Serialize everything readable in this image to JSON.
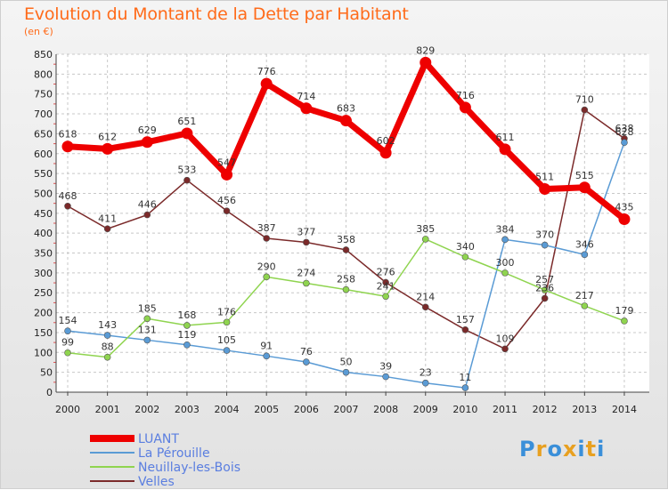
{
  "header": {
    "title": "Evolution du Montant de la Dette par Habitant",
    "subtitle": "(en €)"
  },
  "logo": {
    "text": "Proxiti",
    "colors": [
      "#3a8fd9",
      "#e8a020",
      "#3a8fd9",
      "#e8a020",
      "#3a8fd9",
      "#e8a020",
      "#3a8fd9"
    ]
  },
  "chart_data": {
    "type": "line",
    "title": "Evolution du Montant de la Dette par Habitant",
    "ylabel": "(en €)",
    "xlabel": "",
    "x": [
      "2000",
      "2001",
      "2002",
      "2003",
      "2004",
      "2005",
      "2006",
      "2007",
      "2008",
      "2009",
      "2010",
      "2011",
      "2012",
      "2013",
      "2014"
    ],
    "ylim": [
      0,
      850
    ],
    "yticks": [
      0,
      50,
      100,
      150,
      200,
      250,
      300,
      350,
      400,
      450,
      500,
      550,
      600,
      650,
      700,
      750,
      800,
      850
    ],
    "grid": true,
    "legend_position": "bottom-left",
    "series": [
      {
        "name": "LUANT",
        "color": "#ee0000",
        "highlight": true,
        "values": [
          618,
          612,
          629,
          651,
          547,
          776,
          714,
          683,
          602,
          829,
          716,
          611,
          511,
          515,
          435
        ]
      },
      {
        "name": "La Pérouille",
        "color": "#5a9bd5",
        "values": [
          154,
          143,
          131,
          119,
          105,
          91,
          76,
          50,
          39,
          23,
          11,
          384,
          370,
          346,
          628
        ]
      },
      {
        "name": "Neuillay-les-Bois",
        "color": "#8fd44f",
        "values": [
          99,
          88,
          185,
          168,
          176,
          290,
          274,
          258,
          241,
          385,
          340,
          300,
          257,
          217,
          179
        ]
      },
      {
        "name": "Velles",
        "color": "#7b2a2a",
        "values": [
          468,
          411,
          446,
          533,
          456,
          387,
          377,
          358,
          276,
          214,
          157,
          109,
          236,
          710,
          638
        ]
      }
    ],
    "labels": [
      [
        "618",
        "612",
        "629",
        "651",
        "547",
        "776",
        "714",
        "683",
        "602",
        "829",
        "716",
        "611",
        "511",
        "515",
        "435"
      ],
      [
        "154",
        "143",
        "131",
        "119",
        "105",
        "91",
        "76",
        "50",
        "39",
        "23",
        "11",
        "384",
        "370",
        "346",
        "628"
      ],
      [
        "99",
        "88",
        "185",
        "168",
        "176",
        "290",
        "274",
        "258",
        "241",
        "385",
        "340",
        "300",
        "257",
        "217",
        "179"
      ],
      [
        "468",
        "411",
        "446",
        "533",
        "456",
        "387",
        "377",
        "358",
        "276",
        "214",
        "157",
        "109",
        "236",
        "710",
        "638"
      ]
    ]
  }
}
